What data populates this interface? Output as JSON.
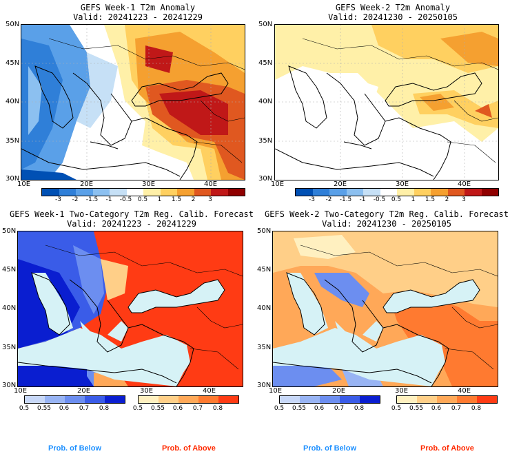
{
  "panels": [
    {
      "title": "GEFS Week-1 T2m Anomaly",
      "valid": "Valid: 20241223 - 20241229"
    },
    {
      "title": "GEFS Week-2 T2m Anomaly",
      "valid": "Valid: 20241230 - 20250105"
    },
    {
      "title": "GEFS Week-1 Two-Category T2m Reg. Calib. Forecast",
      "valid": "Valid: 20241223 - 20241229"
    },
    {
      "title": "GEFS Week-2 Two-Category T2m Reg. Calib. Forecast",
      "valid": "Valid: 20241230 - 20250105"
    }
  ],
  "axes": {
    "lat_labels": [
      "50N",
      "45N",
      "40N",
      "35N",
      "30N"
    ],
    "lon_labels": [
      "10E",
      "20E",
      "30E",
      "40E"
    ]
  },
  "anomaly_colorbar": {
    "labels": [
      "-3",
      "-2",
      "-1.5",
      "-1",
      "-0.5",
      "0.5",
      "1",
      "1.5",
      "2",
      "3"
    ],
    "colors": [
      "#0050b4",
      "#2f7fd8",
      "#5aa0e8",
      "#8cc0f0",
      "#c6e0f6",
      "#ffffff",
      "#fff0a8",
      "#ffd060",
      "#f5a030",
      "#e05820",
      "#c01818",
      "#900000"
    ]
  },
  "prob_colorbar": {
    "below_labels": [
      "0.5",
      "0.55",
      "0.6",
      "0.7",
      "0.8"
    ],
    "above_labels": [
      "0.5",
      "0.55",
      "0.6",
      "0.7",
      "0.8"
    ],
    "below_colors": [
      "#c8d8f8",
      "#98b4f4",
      "#6c8ef0",
      "#3a5ce8",
      "#0a1ed0"
    ],
    "above_colors": [
      "#fff0c0",
      "#ffcf88",
      "#ffa858",
      "#ff7a30",
      "#ff3b14"
    ]
  },
  "footer": {
    "below": "Prob. of Below",
    "above": "Prob. of Above",
    "below_color": "#1e90ff",
    "above_color": "#ff2a00"
  }
}
